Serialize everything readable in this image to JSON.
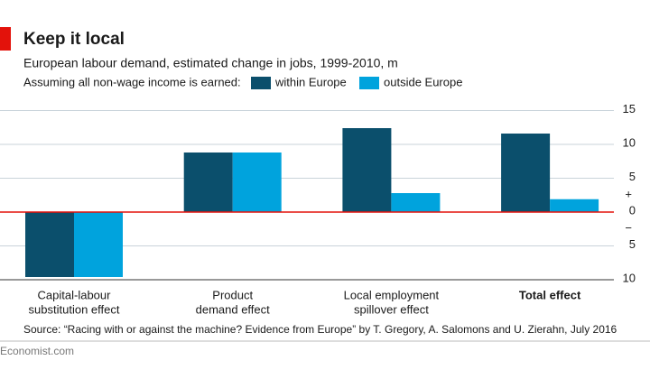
{
  "chart_data": {
    "type": "bar",
    "title": "Keep it local",
    "subtitle": "European labour demand, estimated change in jobs, 1999-2010, m",
    "legend_title": "Assuming all non-wage income is earned:",
    "categories": [
      [
        "Capital-labour",
        "substitution effect"
      ],
      [
        "Product",
        "demand effect"
      ],
      [
        "Local employment",
        "spillover effect"
      ],
      [
        "Total effect"
      ]
    ],
    "emphasis_index": 3,
    "series": [
      {
        "name": "within Europe",
        "color": "#0b4f6c",
        "values": [
          -9.6,
          8.8,
          12.4,
          11.6
        ]
      },
      {
        "name": "outside Europe",
        "color": "#00a3dd",
        "values": [
          -9.6,
          8.8,
          2.8,
          1.9
        ]
      }
    ],
    "ylim": [
      -10,
      15
    ],
    "yticks": [
      {
        "value": -10,
        "label": "10"
      },
      {
        "value": -5,
        "label": "5"
      },
      0,
      5,
      10,
      15
    ],
    "sign_labels": [
      "+",
      "−"
    ],
    "grid": true,
    "source": "Source: “Racing with or against the machine? Evidence from Europe” by T. Gregory, A. Salomons and U. Zierahn, July 2016",
    "footer": "Economist.com"
  }
}
